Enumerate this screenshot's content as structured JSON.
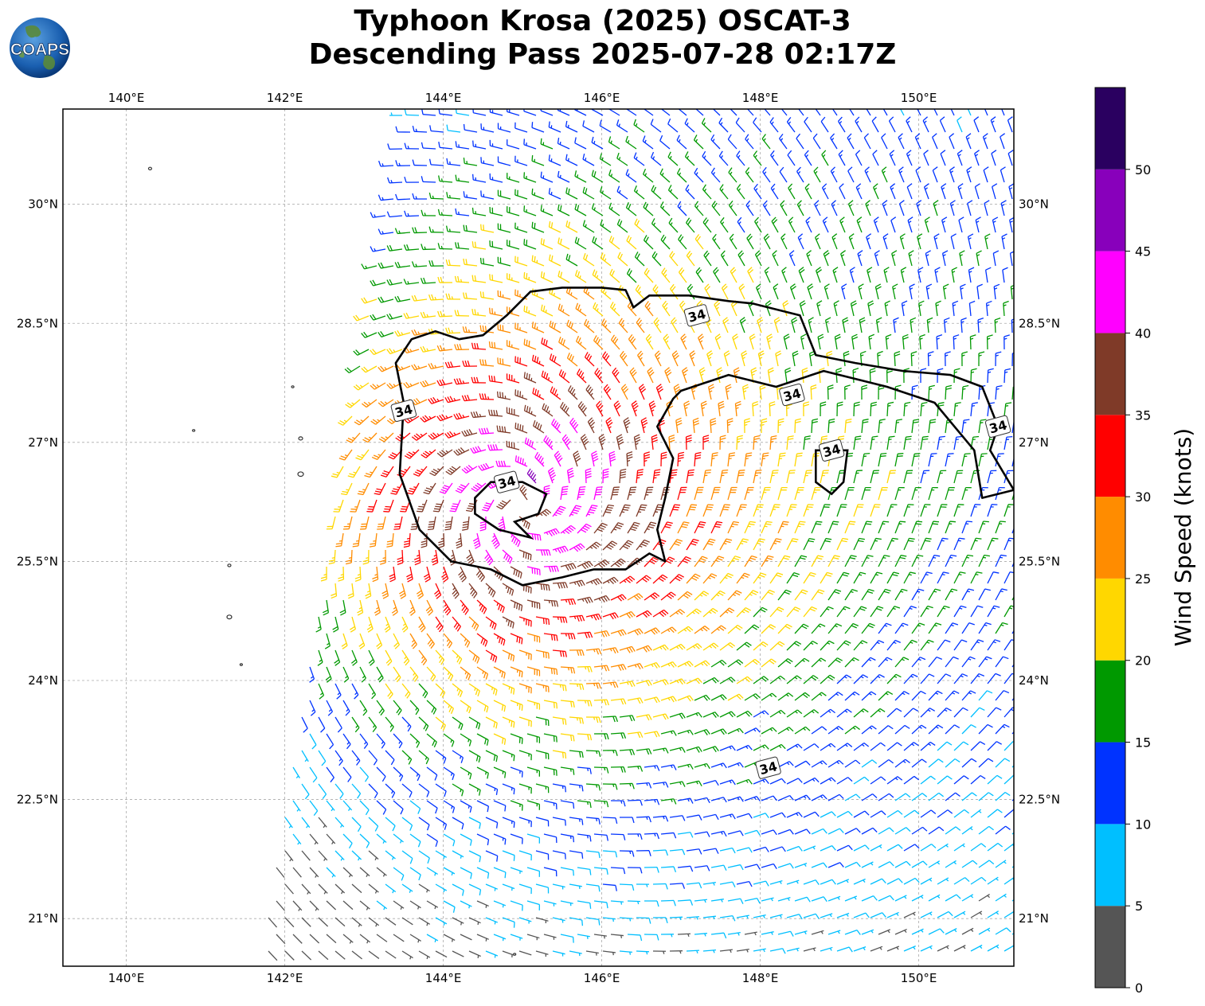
{
  "title": {
    "line1": "Typhoon Krosa (2025) OSCAT-3",
    "line2": "Descending Pass 2025-07-28 02:17Z"
  },
  "logo": {
    "text": "COAPS",
    "icon": "earth-globe-icon"
  },
  "map": {
    "lon_range": [
      139.2,
      151.2
    ],
    "lat_range": [
      20.4,
      31.2
    ],
    "lon_ticks": [
      {
        "value": 140,
        "label": "140°E"
      },
      {
        "value": 142,
        "label": "142°E"
      },
      {
        "value": 144,
        "label": "144°E"
      },
      {
        "value": 146,
        "label": "146°E"
      },
      {
        "value": 148,
        "label": "148°E"
      },
      {
        "value": 150,
        "label": "150°E"
      }
    ],
    "lat_ticks": [
      {
        "value": 30,
        "label": "30°N"
      },
      {
        "value": 28.5,
        "label": "28.5°N"
      },
      {
        "value": 27,
        "label": "27°N"
      },
      {
        "value": 25.5,
        "label": "25.5°N"
      },
      {
        "value": 24,
        "label": "24°N"
      },
      {
        "value": 22.5,
        "label": "22.5°N"
      },
      {
        "value": 21,
        "label": "21°N"
      }
    ],
    "grid": true,
    "storm_center": {
      "lon": 145.0,
      "lat": 26.2
    },
    "swath": {
      "west_edge_top_lon": 143.4,
      "west_edge_bottom_lon": 141.6
    },
    "contour_label": "34",
    "contour_label_positions": [
      {
        "lon": 143.5,
        "lat": 27.4
      },
      {
        "lon": 144.8,
        "lat": 26.5
      },
      {
        "lon": 147.2,
        "lat": 28.6
      },
      {
        "lon": 148.4,
        "lat": 27.6
      },
      {
        "lon": 148.9,
        "lat": 26.9
      },
      {
        "lon": 151.0,
        "lat": 27.2
      },
      {
        "lon": 148.1,
        "lat": 22.9
      }
    ]
  },
  "colorbar": {
    "label": "Wind Speed (knots)",
    "ticks": [
      "0",
      "5",
      "10",
      "15",
      "20",
      "25",
      "30",
      "35",
      "40",
      "45",
      "50"
    ],
    "bins": [
      {
        "min": 0,
        "max": 5,
        "color": "#555555"
      },
      {
        "min": 5,
        "max": 10,
        "color": "#00bfff"
      },
      {
        "min": 10,
        "max": 15,
        "color": "#0033ff"
      },
      {
        "min": 15,
        "max": 20,
        "color": "#009900"
      },
      {
        "min": 20,
        "max": 25,
        "color": "#ffd700"
      },
      {
        "min": 25,
        "max": 30,
        "color": "#ff8c00"
      },
      {
        "min": 30,
        "max": 35,
        "color": "#ff0000"
      },
      {
        "min": 35,
        "max": 40,
        "color": "#7f3a28"
      },
      {
        "min": 40,
        "max": 45,
        "color": "#ff00ff"
      },
      {
        "min": 45,
        "max": 50,
        "color": "#8800bb"
      },
      {
        "min": 50,
        "max": 55,
        "color": "#2a0060"
      }
    ]
  }
}
